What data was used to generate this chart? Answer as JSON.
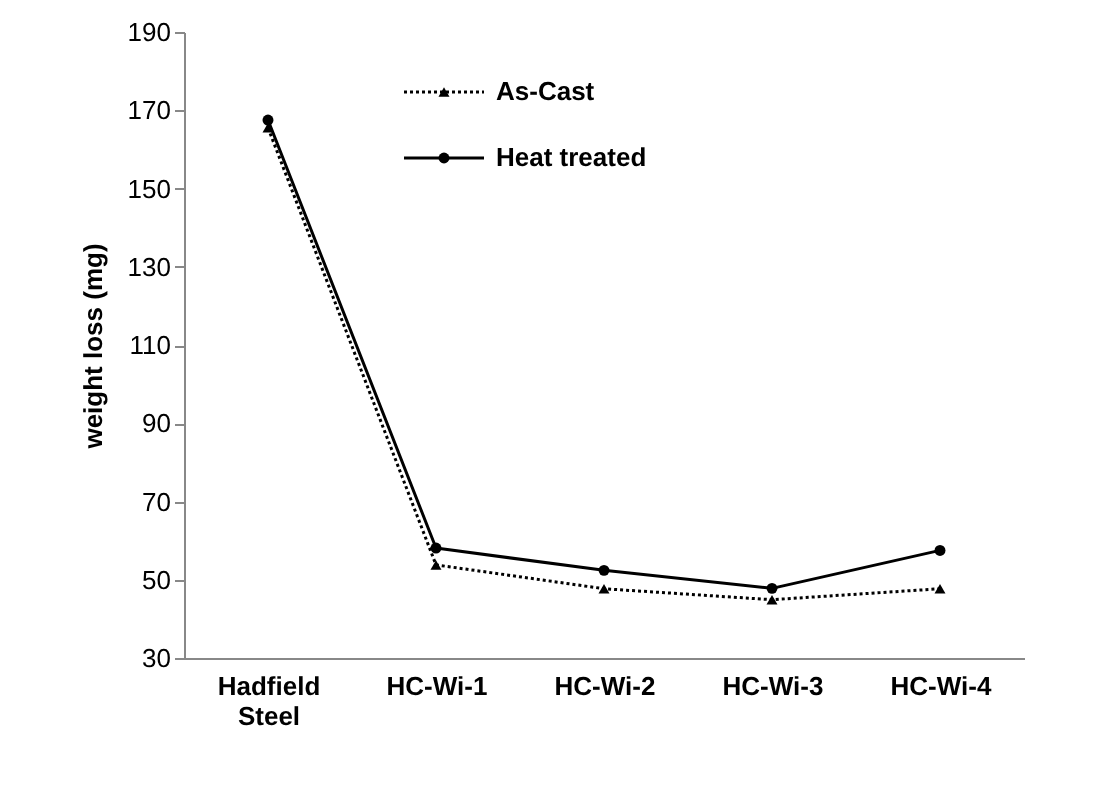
{
  "chart_data": {
    "type": "line",
    "ylabel": "weight loss (mg)",
    "categories": [
      "Hadfield Steel",
      "HC-Wi-1",
      "HC-Wi-2",
      "HC-Wi-3",
      "HC-Wi-4"
    ],
    "series": [
      {
        "name": "As-Cast",
        "color": "#000000",
        "values": [
          165.5,
          53.8,
          47.7,
          44.9,
          47.7
        ],
        "marker": "triangle",
        "line_style": "dotted"
      },
      {
        "name": "Heat treated",
        "color": "#000000",
        "values": [
          167.5,
          58.1,
          52.4,
          47.8,
          57.5
        ],
        "marker": "circle",
        "line_style": "solid"
      }
    ],
    "ylim": [
      30,
      190
    ],
    "yticks": [
      30,
      50,
      70,
      90,
      110,
      130,
      150,
      170,
      190
    ],
    "grid": false,
    "legend": "top"
  }
}
